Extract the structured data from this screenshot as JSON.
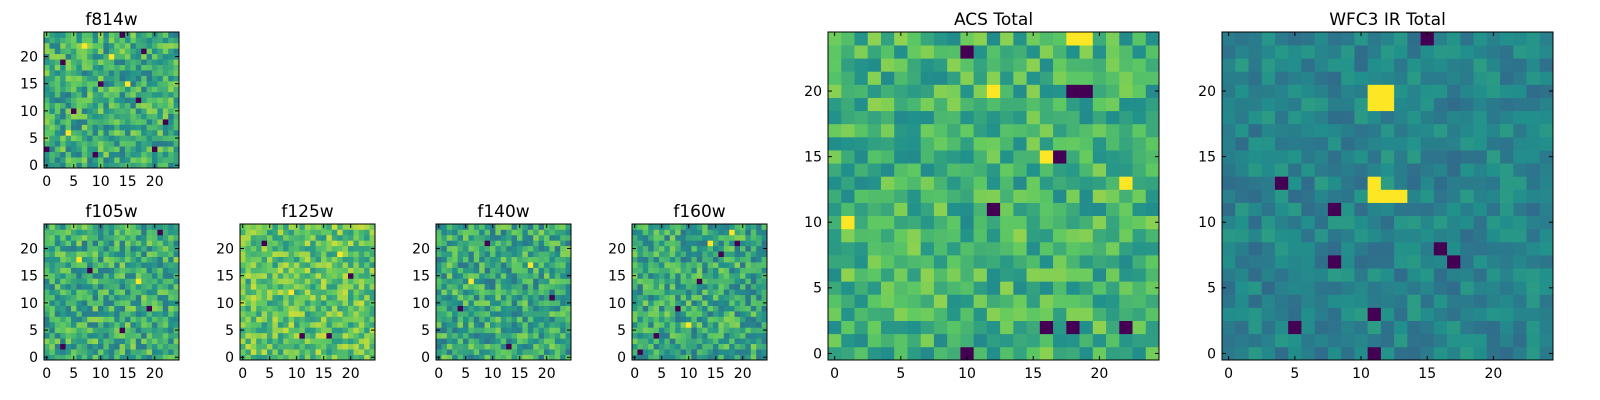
{
  "colormap": [
    "#440154",
    "#3b528b",
    "#21918c",
    "#5ec962",
    "#fde725"
  ],
  "chart_data": [
    {
      "id": "f814w",
      "type": "heatmap",
      "title": "f814w",
      "grid": 25,
      "xlim": [
        -0.5,
        24.5
      ],
      "ylim": [
        -0.5,
        24.5
      ],
      "xticks": [
        0,
        5,
        10,
        15,
        20
      ],
      "yticks": [
        0,
        5,
        10,
        15,
        20
      ],
      "xtick_labels": [
        "0",
        "5",
        "10",
        "15",
        "20"
      ],
      "ytick_labels": [
        "0",
        "5",
        "10",
        "15",
        "20"
      ],
      "seed": 11,
      "base": 0.62,
      "noise": 0.22,
      "dark": [
        [
          0,
          3
        ],
        [
          5,
          10
        ],
        [
          10,
          15
        ],
        [
          18,
          21
        ],
        [
          17,
          12
        ],
        [
          3,
          19
        ],
        [
          20,
          3
        ],
        [
          14,
          24
        ],
        [
          22,
          8
        ],
        [
          9,
          2
        ]
      ],
      "bright": [
        [
          12,
          20
        ],
        [
          4,
          6
        ],
        [
          15,
          15
        ],
        [
          7,
          22
        ]
      ]
    },
    {
      "id": "f105w",
      "type": "heatmap",
      "title": "f105w",
      "grid": 25,
      "xlim": [
        -0.5,
        24.5
      ],
      "ylim": [
        -0.5,
        24.5
      ],
      "xticks": [
        0,
        5,
        10,
        15,
        20
      ],
      "yticks": [
        0,
        5,
        10,
        15,
        20
      ],
      "xtick_labels": [
        "0",
        "5",
        "10",
        "15",
        "20"
      ],
      "ytick_labels": [
        "0",
        "5",
        "10",
        "15",
        "20"
      ],
      "seed": 23,
      "base": 0.62,
      "noise": 0.22,
      "dark": [
        [
          19,
          9
        ],
        [
          8,
          16
        ],
        [
          21,
          23
        ],
        [
          3,
          2
        ],
        [
          14,
          5
        ]
      ],
      "bright": [
        [
          6,
          18
        ],
        [
          17,
          14
        ]
      ]
    },
    {
      "id": "f125w",
      "type": "heatmap",
      "title": "f125w",
      "grid": 25,
      "xlim": [
        -0.5,
        24.5
      ],
      "ylim": [
        -0.5,
        24.5
      ],
      "xticks": [
        0,
        5,
        10,
        15,
        20
      ],
      "yticks": [
        0,
        5,
        10,
        15,
        20
      ],
      "xtick_labels": [
        "0",
        "5",
        "10",
        "15",
        "20"
      ],
      "ytick_labels": [
        "0",
        "5",
        "10",
        "15",
        "20"
      ],
      "seed": 37,
      "base": 0.72,
      "noise": 0.2,
      "dark": [
        [
          11,
          4
        ],
        [
          16,
          4
        ],
        [
          20,
          15
        ],
        [
          4,
          21
        ]
      ],
      "bright": [
        [
          9,
          12
        ],
        [
          18,
          19
        ]
      ]
    },
    {
      "id": "f140w",
      "type": "heatmap",
      "title": "f140w",
      "grid": 25,
      "xlim": [
        -0.5,
        24.5
      ],
      "ylim": [
        -0.5,
        24.5
      ],
      "xticks": [
        0,
        5,
        10,
        15,
        20
      ],
      "yticks": [
        0,
        5,
        10,
        15,
        20
      ],
      "xtick_labels": [
        "0",
        "5",
        "10",
        "15",
        "20"
      ],
      "ytick_labels": [
        "0",
        "5",
        "10",
        "15",
        "20"
      ],
      "seed": 41,
      "base": 0.6,
      "noise": 0.22,
      "dark": [
        [
          4,
          9
        ],
        [
          21,
          11
        ],
        [
          13,
          2
        ],
        [
          9,
          21
        ]
      ],
      "bright": [
        [
          17,
          17
        ],
        [
          6,
          14
        ]
      ]
    },
    {
      "id": "f160w",
      "type": "heatmap",
      "title": "f160w",
      "grid": 25,
      "xlim": [
        -0.5,
        24.5
      ],
      "ylim": [
        -0.5,
        24.5
      ],
      "xticks": [
        0,
        5,
        10,
        15,
        20
      ],
      "yticks": [
        0,
        5,
        10,
        15,
        20
      ],
      "xtick_labels": [
        "0",
        "5",
        "10",
        "15",
        "20"
      ],
      "ytick_labels": [
        "0",
        "5",
        "10",
        "15",
        "20"
      ],
      "seed": 53,
      "base": 0.6,
      "noise": 0.22,
      "dark": [
        [
          8,
          9
        ],
        [
          4,
          4
        ],
        [
          1,
          1
        ],
        [
          16,
          19
        ],
        [
          19,
          21
        ],
        [
          12,
          14
        ]
      ],
      "bright": [
        [
          14,
          21
        ],
        [
          18,
          23
        ],
        [
          10,
          6
        ]
      ]
    },
    {
      "id": "acs-total",
      "type": "heatmap",
      "title": "ACS Total",
      "grid": 25,
      "xlim": [
        -0.5,
        24.5
      ],
      "ylim": [
        -0.5,
        24.5
      ],
      "xticks": [
        0,
        5,
        10,
        15,
        20
      ],
      "yticks": [
        0,
        5,
        10,
        15,
        20
      ],
      "xtick_labels": [
        "0",
        "5",
        "10",
        "15",
        "20"
      ],
      "ytick_labels": [
        "0",
        "5",
        "10",
        "15",
        "20"
      ],
      "seed": 67,
      "base": 0.65,
      "noise": 0.18,
      "dark": [
        [
          10,
          23
        ],
        [
          18,
          20
        ],
        [
          19,
          20
        ],
        [
          17,
          15
        ],
        [
          12,
          11
        ],
        [
          10,
          0
        ],
        [
          16,
          2
        ],
        [
          18,
          2
        ],
        [
          22,
          2
        ]
      ],
      "bright": [
        [
          16,
          15
        ],
        [
          22,
          13
        ],
        [
          1,
          10
        ],
        [
          12,
          20
        ],
        [
          18,
          24
        ],
        [
          19,
          24
        ]
      ]
    },
    {
      "id": "wfc3-ir-total",
      "type": "heatmap",
      "title": "WFC3 IR Total",
      "grid": 25,
      "xlim": [
        -0.5,
        24.5
      ],
      "ylim": [
        -0.5,
        24.5
      ],
      "xticks": [
        0,
        5,
        10,
        15,
        20
      ],
      "yticks": [
        0,
        5,
        10,
        15,
        20
      ],
      "xtick_labels": [
        "0",
        "5",
        "10",
        "15",
        "20"
      ],
      "ytick_labels": [
        "0",
        "5",
        "10",
        "15",
        "20"
      ],
      "seed": 79,
      "base": 0.45,
      "noise": 0.1,
      "dark": [
        [
          15,
          24
        ],
        [
          4,
          13
        ],
        [
          8,
          11
        ],
        [
          16,
          8
        ],
        [
          17,
          7
        ],
        [
          11,
          0
        ],
        [
          11,
          3
        ],
        [
          8,
          7
        ],
        [
          5,
          2
        ]
      ],
      "bright": [
        [
          11,
          20
        ],
        [
          12,
          20
        ],
        [
          11,
          19
        ],
        [
          12,
          19
        ],
        [
          11,
          13
        ],
        [
          11,
          12
        ],
        [
          12,
          12
        ],
        [
          13,
          12
        ]
      ]
    }
  ]
}
